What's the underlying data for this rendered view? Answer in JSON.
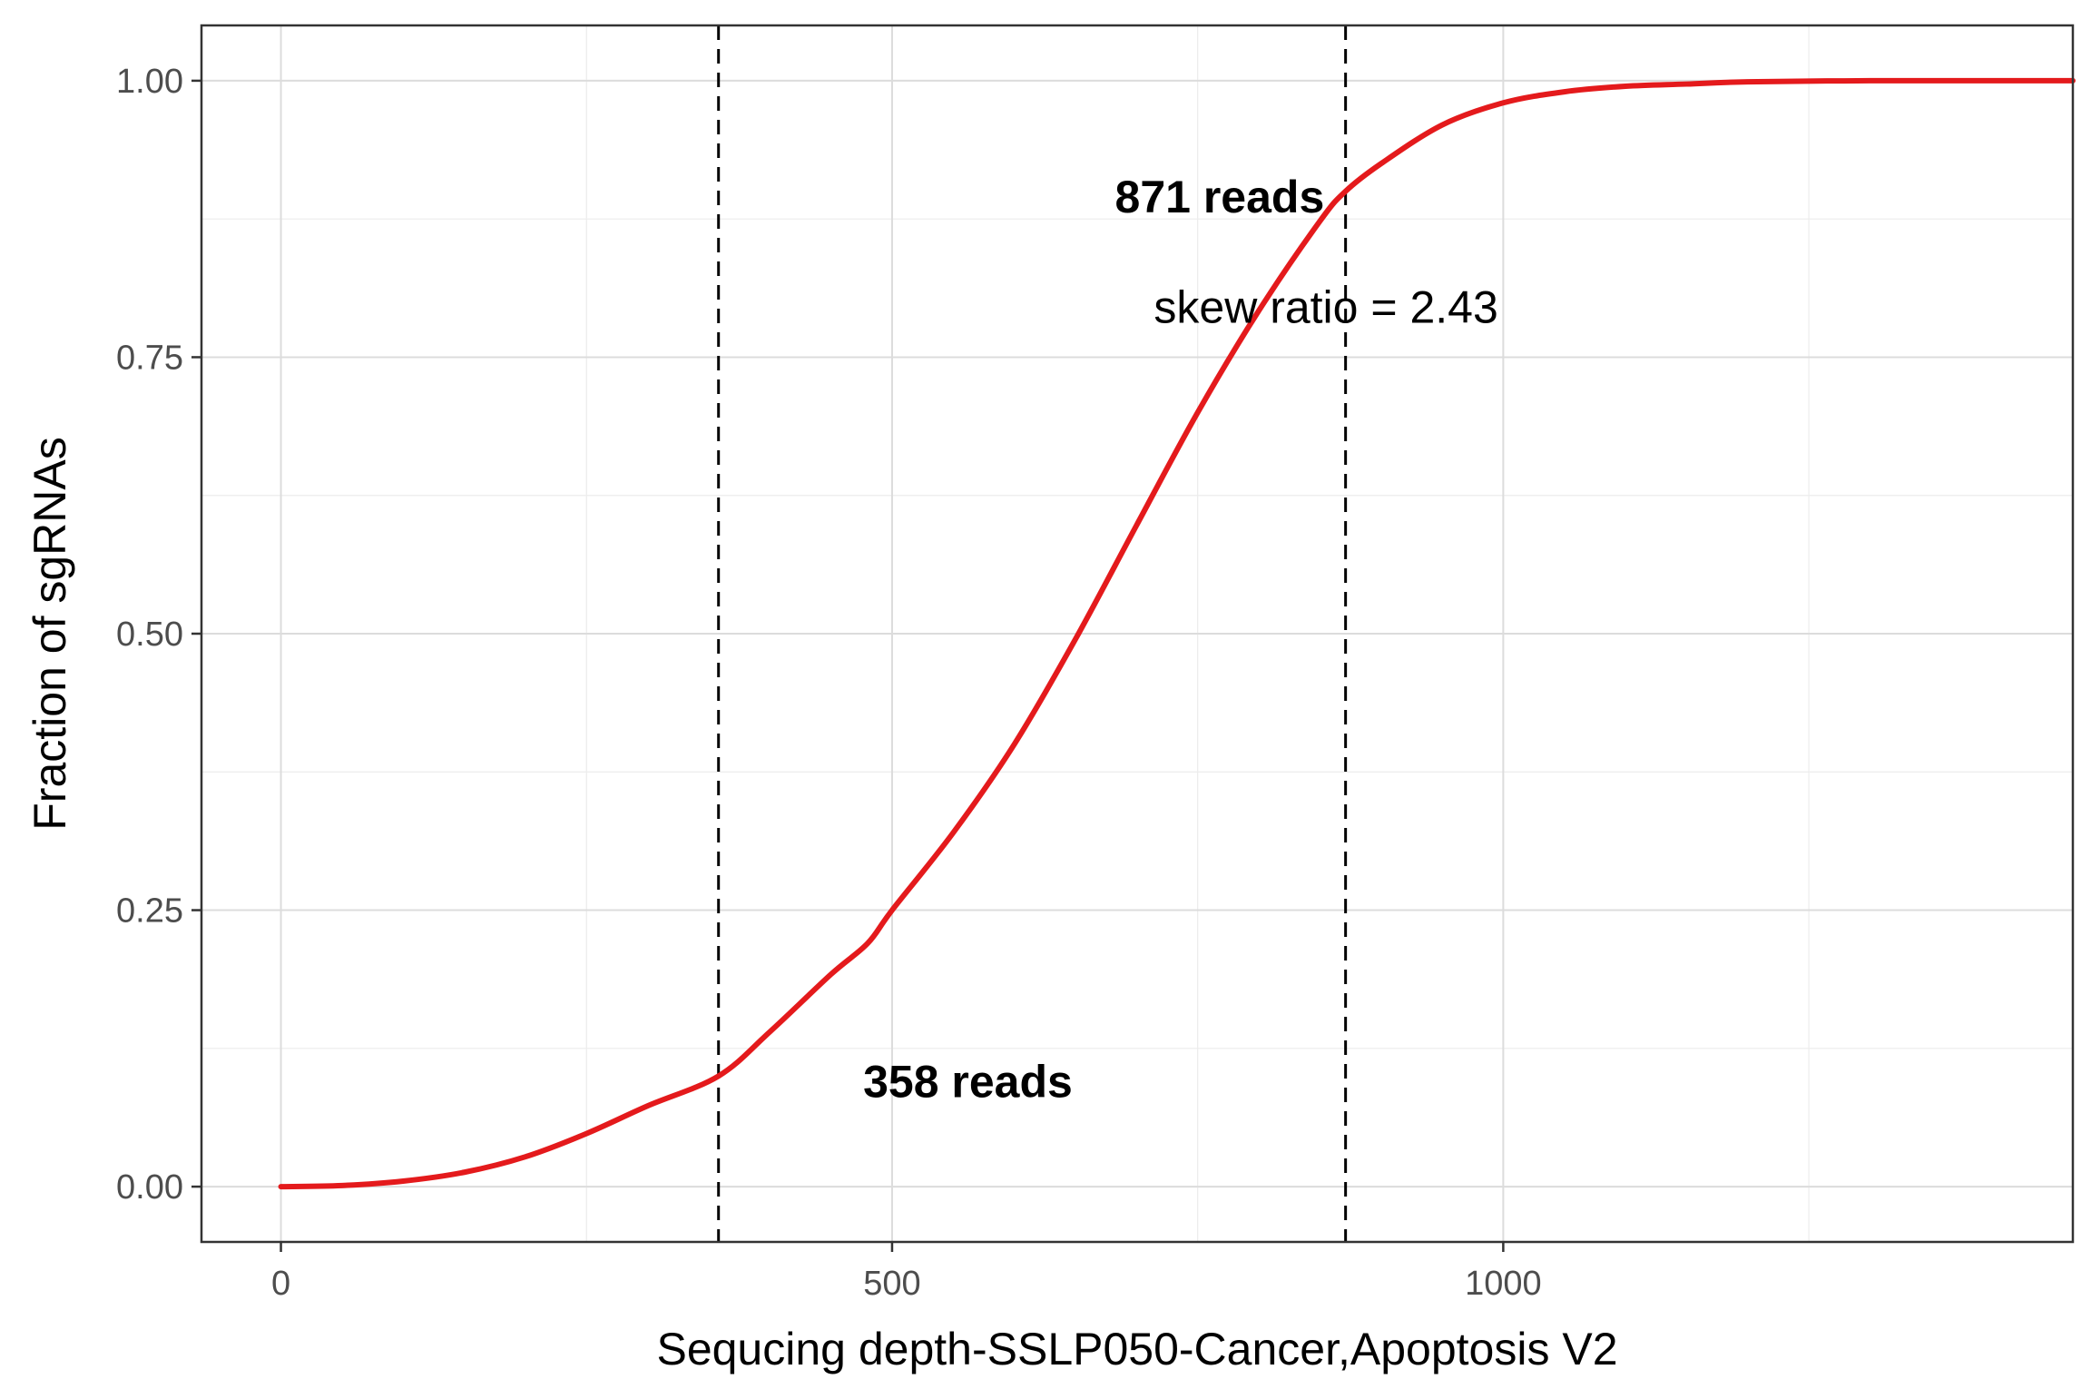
{
  "chart_data": {
    "type": "line",
    "title": "",
    "xlabel": "Sequcing depth-SSLP050-Cancer,Apoptosis V2",
    "ylabel": "Fraction of sgRNAs",
    "xlim": [
      -65,
      1466
    ],
    "ylim": [
      -0.05,
      1.05
    ],
    "x_ticks": [
      0,
      500,
      1000
    ],
    "x_tick_labels": [
      "0",
      "500",
      "1000"
    ],
    "y_ticks": [
      0,
      0.25,
      0.5,
      0.75,
      1.0
    ],
    "y_tick_labels": [
      "0.00",
      "0.25",
      "0.50",
      "0.75",
      "1.00"
    ],
    "x_minor_ticks": [
      250,
      750,
      1250
    ],
    "y_minor_ticks": [
      0.125,
      0.375,
      0.625,
      0.875
    ],
    "grid": true,
    "legend": "none",
    "series": [
      {
        "color": "#e41a1c",
        "x": [
          0,
          50,
          100,
          150,
          200,
          250,
          300,
          358,
          400,
          450,
          480,
          500,
          550,
          600,
          650,
          700,
          750,
          800,
          850,
          871,
          900,
          950,
          1000,
          1050,
          1100,
          1150,
          1200,
          1300,
          1400,
          1466
        ],
        "y": [
          0.0,
          0.001,
          0.005,
          0.013,
          0.027,
          0.048,
          0.073,
          0.1,
          0.14,
          0.192,
          0.22,
          0.25,
          0.32,
          0.4,
          0.495,
          0.598,
          0.7,
          0.792,
          0.873,
          0.9,
          0.925,
          0.96,
          0.98,
          0.99,
          0.995,
          0.997,
          0.999,
          1.0,
          1.0,
          1.0
        ]
      }
    ],
    "vlines": [
      {
        "x": 358,
        "color": "#000000",
        "style": "dashed"
      },
      {
        "x": 871,
        "color": "#000000",
        "style": "dashed"
      }
    ],
    "annotations": [
      {
        "text": "871 reads",
        "x": 768,
        "y": 0.895,
        "bold": true
      },
      {
        "text": "skew ratio = 2.43",
        "x": 855,
        "y": 0.795,
        "bold": false
      },
      {
        "text": "358 reads",
        "x": 562,
        "y": 0.095,
        "bold": true
      }
    ]
  }
}
